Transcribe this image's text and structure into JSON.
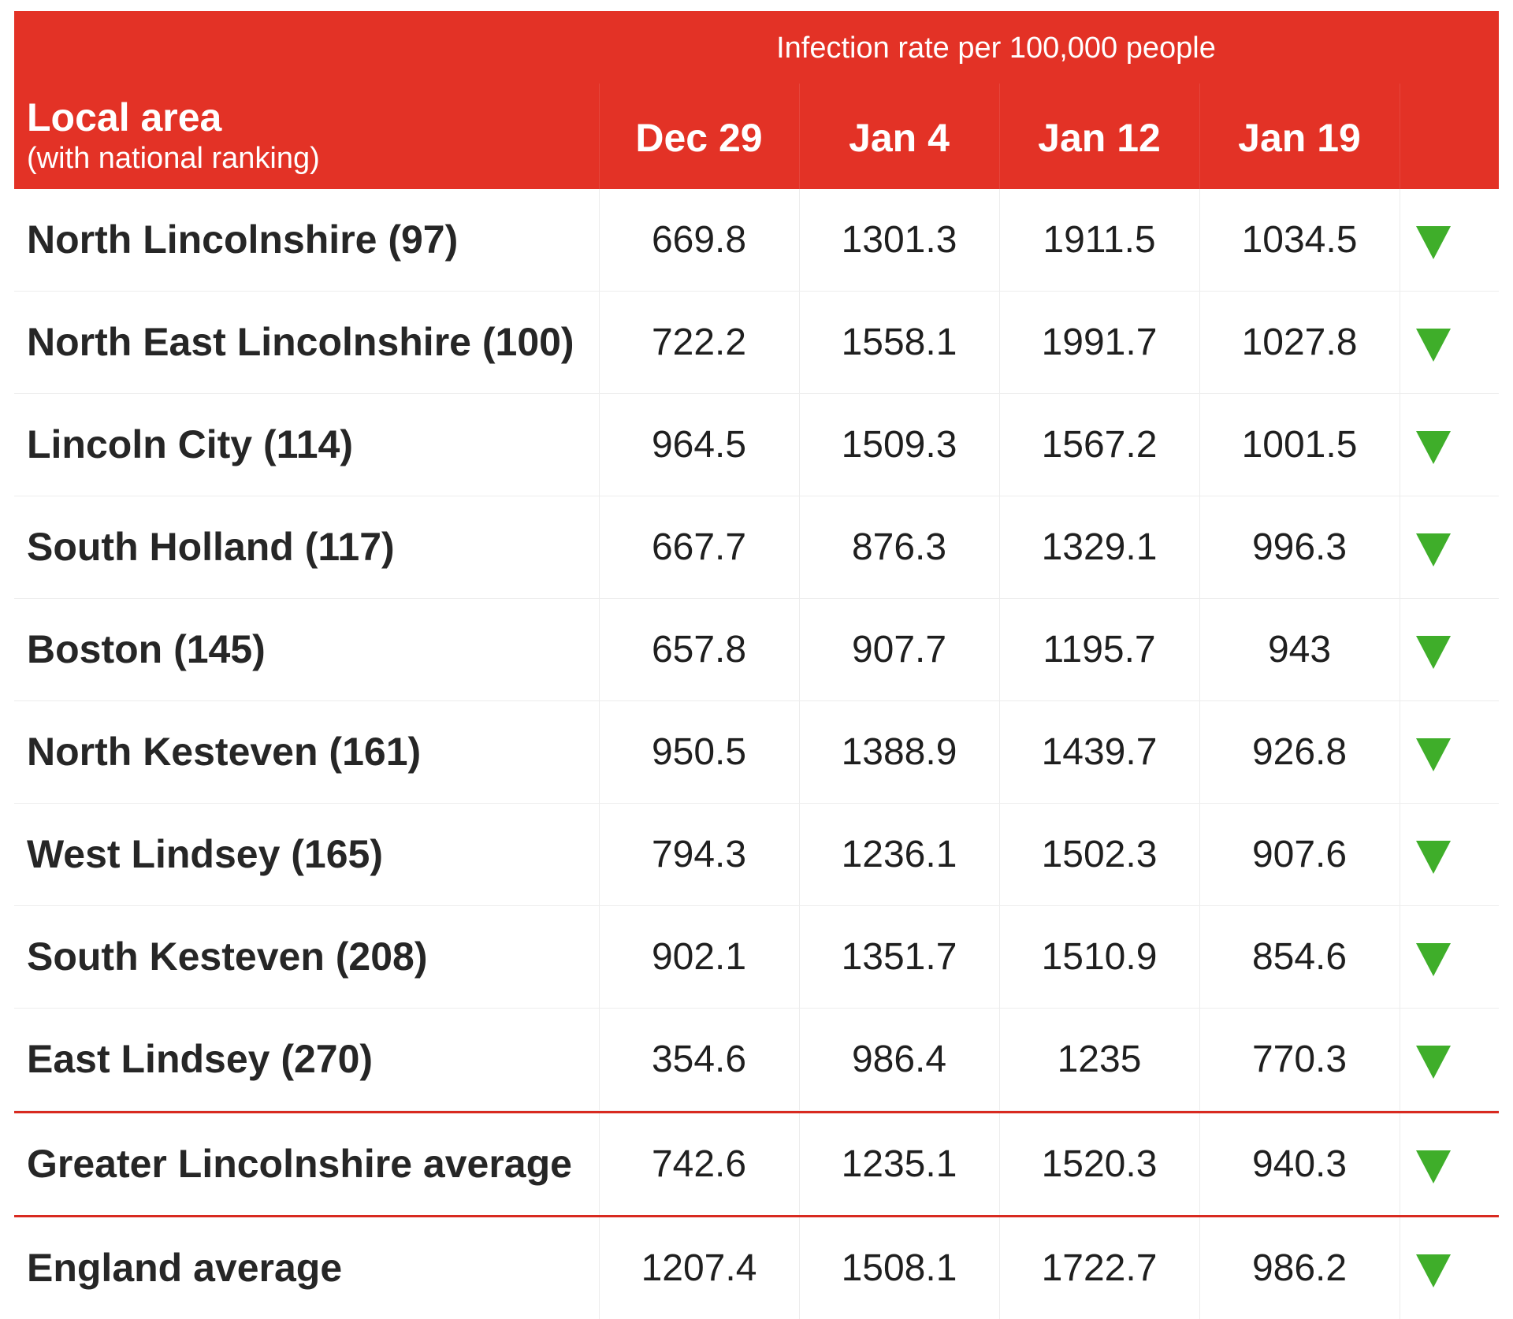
{
  "chart_data": {
    "type": "table",
    "group_header": "Infection rate per 100,000 people",
    "row_header": {
      "title": "Local area",
      "subtitle": "(with national ranking)"
    },
    "columns": [
      "Dec 29",
      "Jan 4",
      "Jan 12",
      "Jan 19"
    ],
    "rows": [
      {
        "name": "North Lincolnshire (97)",
        "values": [
          "669.8",
          "1301.3",
          "1911.5",
          "1034.5"
        ],
        "trend": "down"
      },
      {
        "name": "North East Lincolnshire (100)",
        "values": [
          "722.2",
          "1558.1",
          "1991.7",
          "1027.8"
        ],
        "trend": "down"
      },
      {
        "name": "Lincoln City (114)",
        "values": [
          "964.5",
          "1509.3",
          "1567.2",
          "1001.5"
        ],
        "trend": "down"
      },
      {
        "name": "South Holland (117)",
        "values": [
          "667.7",
          "876.3",
          "1329.1",
          "996.3"
        ],
        "trend": "down"
      },
      {
        "name": "Boston (145)",
        "values": [
          "657.8",
          "907.7",
          "1195.7",
          "943"
        ],
        "trend": "down"
      },
      {
        "name": "North Kesteven (161)",
        "values": [
          "950.5",
          "1388.9",
          "1439.7",
          "926.8"
        ],
        "trend": "down"
      },
      {
        "name": "West Lindsey (165)",
        "values": [
          "794.3",
          "1236.1",
          "1502.3",
          "907.6"
        ],
        "trend": "down"
      },
      {
        "name": "South Kesteven (208)",
        "values": [
          "902.1",
          "1351.7",
          "1510.9",
          "854.6"
        ],
        "trend": "down"
      },
      {
        "name": "East Lindsey (270)",
        "values": [
          "354.6",
          "986.4",
          "1235",
          "770.3"
        ],
        "trend": "down"
      }
    ],
    "averages": [
      {
        "name": "Greater Lincolnshire average",
        "values": [
          "742.6",
          "1235.1",
          "1520.3",
          "940.3"
        ],
        "trend": "down"
      },
      {
        "name": "England average",
        "values": [
          "1207.4",
          "1508.1",
          "1722.7",
          "986.2"
        ],
        "trend": "down"
      }
    ],
    "colors": {
      "header_bg": "#e33226",
      "header_text": "#ffffff",
      "rule": "#d82a20",
      "down_arrow": "#3fae2a"
    }
  }
}
